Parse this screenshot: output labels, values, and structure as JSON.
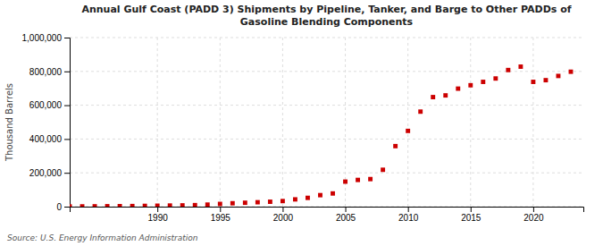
{
  "chart_data": {
    "type": "scatter",
    "title": "Annual Gulf Coast (PADD 3) Shipments by Pipeline, Tanker, and Barge to Other PADDs of\nGasoline Blending Components",
    "ylabel": "Thousand Barrels",
    "annotations": [
      "Source: U.S. Energy Information Administration"
    ],
    "x": [
      1983,
      1984,
      1985,
      1986,
      1987,
      1988,
      1989,
      1990,
      1991,
      1992,
      1993,
      1994,
      1995,
      1996,
      1997,
      1998,
      1999,
      2000,
      2001,
      2002,
      2003,
      2004,
      2005,
      2006,
      2007,
      2008,
      2009,
      2010,
      2011,
      2012,
      2013,
      2014,
      2015,
      2016,
      2017,
      2018,
      2019,
      2020,
      2021,
      2022,
      2023
    ],
    "values": [
      1200,
      1500,
      2000,
      2500,
      3000,
      3500,
      4500,
      5500,
      6500,
      7500,
      9000,
      12000,
      16000,
      20000,
      23000,
      26000,
      29000,
      33000,
      43000,
      52000,
      68000,
      78000,
      148000,
      158000,
      163000,
      218000,
      358000,
      448000,
      562000,
      648000,
      658000,
      698000,
      718000,
      738000,
      758000,
      808000,
      828000,
      738000,
      748000,
      773000,
      798000
    ],
    "color": "#cc0000",
    "marker": "square",
    "xlim": [
      1983,
      2024
    ],
    "ylim": [
      0,
      1000000
    ],
    "xticks": [
      1990,
      1995,
      2000,
      2005,
      2010,
      2015,
      2020
    ],
    "yticks": [
      0,
      {
        "value": 200000,
        "label": "200,000"
      },
      {
        "value": 400000,
        "label": "400,000"
      },
      {
        "value": 600000,
        "label": "600,000"
      },
      {
        "value": 800000,
        "label": "800,000"
      },
      {
        "value": 1000000,
        "label": "1,000,000"
      }
    ],
    "grid": true
  }
}
